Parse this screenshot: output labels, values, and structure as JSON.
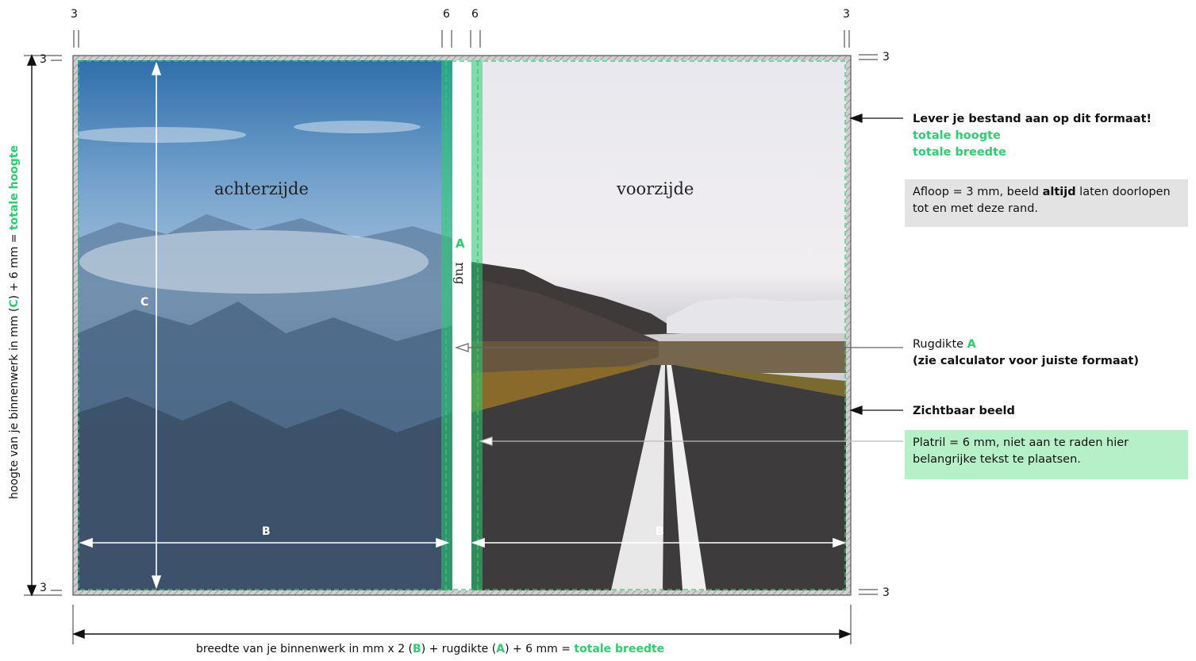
{
  "marks": {
    "top_left": "3",
    "top_spine_left": "6",
    "top_spine_right": "6",
    "top_right": "3",
    "right_top": "3",
    "right_bottom": "3",
    "left_top": "3",
    "left_bottom": "3"
  },
  "panels": {
    "back_label": "achterzijde",
    "front_label": "voorzijde",
    "spine_letter": "A",
    "spine_word": "rug",
    "c_label": "C",
    "b_left": "B",
    "b_right": "B"
  },
  "callouts": {
    "deliver_title": "Lever je bestand aan op dit formaat!",
    "deliver_height": "totale hoogte",
    "deliver_width": "totale breedte",
    "bleed_pre": "Afloop = 3 mm, beeld ",
    "bleed_bold": "altijd",
    "bleed_post": " laten doorlopen tot en met deze rand.",
    "spine_pre": "Rugdikte ",
    "spine_letter": "A",
    "spine_note": "(zie calculator voor juiste formaat)",
    "visible": "Zichtbaar beeld",
    "hinge": "Platril = 6 mm, niet aan te raden hier belangrijke tekst te plaatsen."
  },
  "bottom_formula": {
    "p1": "breedte van je binnenwerk in mm x 2 (",
    "b": "B",
    "p2": ") + rugdikte (",
    "a": "A",
    "p3": ") + 6 mm = ",
    "total": "totale breedte"
  },
  "left_formula": {
    "p1": "hoogte van je binnenwerk in mm (",
    "c": "C",
    "p2": ") + 6 mm = ",
    "total": "totale hoogte"
  },
  "colors": {
    "accent_green": "#2ecc71",
    "grey_box": "#e3e3e3",
    "green_box": "#b6f0c8"
  }
}
